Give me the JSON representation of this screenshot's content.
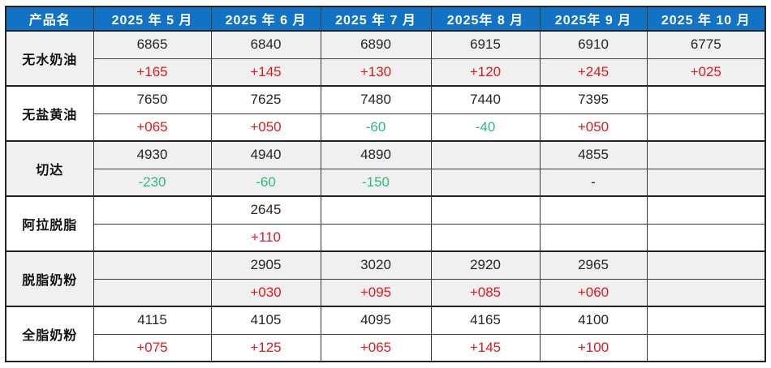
{
  "colors": {
    "header_bg": "#1273C4",
    "header_text": "#FFFFFF",
    "change_up_red": "#E0191F",
    "change_down_green": "#2ABD7A",
    "row_shade_gray": "#F1F0F0",
    "grid_border": "#3A3A3A"
  },
  "chart_data": {
    "type": "table",
    "product_header": "产品名",
    "columns": [
      "产品名",
      "2025 年 5 月",
      "2025 年 6 月",
      "2025 年 7 月",
      "2025年 8 月",
      "2025年 9 月",
      "2025 年 10 月"
    ],
    "months": [
      "2025 年 5 月",
      "2025 年 6 月",
      "2025 年 7 月",
      "2025年 8 月",
      "2025年 9 月",
      "2025 年 10 月"
    ],
    "products": [
      {
        "name": "无水奶油",
        "prices": [
          "6865",
          "6840",
          "6890",
          "6915",
          "6910",
          "6775"
        ],
        "changes": [
          "+165",
          "+145",
          "+130",
          "+120",
          "+245",
          "+025"
        ]
      },
      {
        "name": "无盐黄油",
        "prices": [
          "7650",
          "7625",
          "7480",
          "7440",
          "7395",
          ""
        ],
        "changes": [
          "+065",
          "+050",
          "-60",
          "-40",
          "+050",
          ""
        ]
      },
      {
        "name": "切达",
        "prices": [
          "4930",
          "4940",
          "4890",
          "",
          "4855",
          ""
        ],
        "changes": [
          "-230",
          "-60",
          "-150",
          "",
          "-",
          ""
        ]
      },
      {
        "name": "阿拉脱脂",
        "prices": [
          "",
          "2645",
          "",
          "",
          "",
          ""
        ],
        "changes": [
          "",
          "+110",
          "",
          "",
          "",
          ""
        ]
      },
      {
        "name": "脱脂奶粉",
        "prices": [
          "",
          "2905",
          "3020",
          "2920",
          "2965",
          ""
        ],
        "changes": [
          "",
          "+030",
          "+095",
          "+085",
          "+060",
          ""
        ]
      },
      {
        "name": "全脂奶粉",
        "prices": [
          "4115",
          "4105",
          "4095",
          "4165",
          "4100",
          ""
        ],
        "changes": [
          "+075",
          "+125",
          "+065",
          "+145",
          "+100",
          ""
        ]
      }
    ]
  }
}
